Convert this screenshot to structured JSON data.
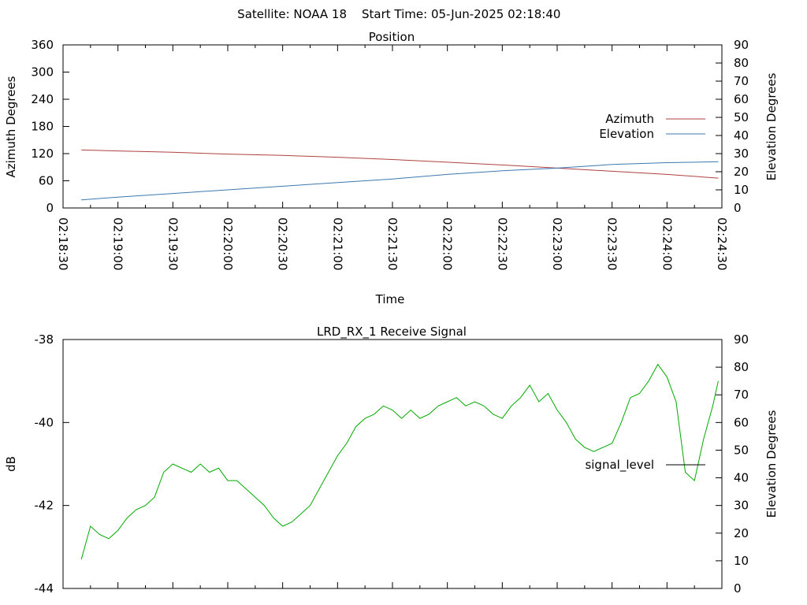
{
  "header": {
    "satellite_label": "Satellite: NOAA 18",
    "start_time_label": "Start Time: 05-Jun-2025 02:18:40"
  },
  "colors": {
    "azimuth": "#b04040",
    "elevation": "#3a78b0",
    "signal": "#00aa00",
    "legend_signal": "#000000",
    "axis": "#000000"
  },
  "chart_data": [
    {
      "type": "line",
      "title": "Position",
      "xlabel": "Time",
      "ylabel": "Azimuth Degrees",
      "y2label": "Elevation Degrees",
      "xlim": [
        "02:18:30",
        "02:24:30"
      ],
      "ylim": [
        0,
        360
      ],
      "y2lim": [
        0,
        90
      ],
      "xticks": [
        "02:18:30",
        "02:19:00",
        "02:19:30",
        "02:20:00",
        "02:20:30",
        "02:21:00",
        "02:21:30",
        "02:22:00",
        "02:22:30",
        "02:23:00",
        "02:23:30",
        "02:24:00",
        "02:24:30"
      ],
      "yticks": [
        "0",
        "60",
        "120",
        "180",
        "240",
        "300",
        "360"
      ],
      "y2ticks": [
        "0",
        "10",
        "20",
        "30",
        "40",
        "50",
        "60",
        "70",
        "80",
        "90"
      ],
      "legend_position": "right",
      "series": [
        {
          "name": "Azimuth",
          "axis": "y",
          "x": [
            "02:18:40",
            "02:19:00",
            "02:19:30",
            "02:20:00",
            "02:20:30",
            "02:21:00",
            "02:21:30",
            "02:22:00",
            "02:22:30",
            "02:23:00",
            "02:23:30",
            "02:24:00",
            "02:24:28"
          ],
          "values": [
            128,
            126,
            123,
            119,
            116,
            112,
            107,
            101,
            95,
            88,
            81,
            74,
            66
          ]
        },
        {
          "name": "Elevation",
          "axis": "y2",
          "x": [
            "02:18:40",
            "02:19:00",
            "02:19:30",
            "02:20:00",
            "02:20:30",
            "02:21:00",
            "02:21:30",
            "02:22:00",
            "02:22:30",
            "02:23:00",
            "02:23:30",
            "02:24:00",
            "02:24:28"
          ],
          "values": [
            4.5,
            6,
            8,
            10,
            12,
            14,
            16,
            18.5,
            20.5,
            22,
            24,
            25,
            25.5
          ]
        }
      ]
    },
    {
      "type": "line",
      "title": "LRD_RX_1 Receive Signal",
      "xlabel": "",
      "ylabel": "dB",
      "y2label": "Elevation Degrees",
      "xlim": [
        "02:18:30",
        "02:24:30"
      ],
      "ylim": [
        -44,
        -38
      ],
      "y2lim": [
        0,
        90
      ],
      "yticks": [
        "-44",
        "-42",
        "-40",
        "-38"
      ],
      "y2ticks": [
        "0",
        "10",
        "20",
        "30",
        "40",
        "50",
        "60",
        "70",
        "80",
        "90"
      ],
      "legend_position": "right",
      "series": [
        {
          "name": "signal_level",
          "axis": "y",
          "x": [
            "02:18:40",
            "02:18:45",
            "02:18:50",
            "02:18:55",
            "02:19:00",
            "02:19:05",
            "02:19:10",
            "02:19:15",
            "02:19:20",
            "02:19:25",
            "02:19:30",
            "02:19:35",
            "02:19:40",
            "02:19:45",
            "02:19:50",
            "02:19:55",
            "02:20:00",
            "02:20:05",
            "02:20:10",
            "02:20:15",
            "02:20:20",
            "02:20:25",
            "02:20:30",
            "02:20:35",
            "02:20:40",
            "02:20:45",
            "02:20:50",
            "02:20:55",
            "02:21:00",
            "02:21:05",
            "02:21:10",
            "02:21:15",
            "02:21:20",
            "02:21:25",
            "02:21:30",
            "02:21:35",
            "02:21:40",
            "02:21:45",
            "02:21:50",
            "02:21:55",
            "02:22:00",
            "02:22:05",
            "02:22:10",
            "02:22:15",
            "02:22:20",
            "02:22:25",
            "02:22:30",
            "02:22:35",
            "02:22:40",
            "02:22:45",
            "02:22:50",
            "02:22:55",
            "02:23:00",
            "02:23:05",
            "02:23:10",
            "02:23:15",
            "02:23:20",
            "02:23:25",
            "02:23:30",
            "02:23:35",
            "02:23:40",
            "02:23:45",
            "02:23:50",
            "02:23:55",
            "02:24:00",
            "02:24:05",
            "02:24:10",
            "02:24:15",
            "02:24:20",
            "02:24:25",
            "02:24:28"
          ],
          "values": [
            -43.3,
            -42.5,
            -42.7,
            -42.8,
            -42.6,
            -42.3,
            -42.1,
            -42.0,
            -41.8,
            -41.2,
            -41.0,
            -41.1,
            -41.2,
            -41.0,
            -41.2,
            -41.1,
            -41.4,
            -41.4,
            -41.6,
            -41.8,
            -42.0,
            -42.3,
            -42.5,
            -42.4,
            -42.2,
            -42.0,
            -41.6,
            -41.2,
            -40.8,
            -40.5,
            -40.1,
            -39.9,
            -39.8,
            -39.6,
            -39.7,
            -39.9,
            -39.7,
            -39.9,
            -39.8,
            -39.6,
            -39.5,
            -39.4,
            -39.6,
            -39.5,
            -39.6,
            -39.8,
            -39.9,
            -39.6,
            -39.4,
            -39.1,
            -39.5,
            -39.3,
            -39.7,
            -40.0,
            -40.4,
            -40.6,
            -40.7,
            -40.6,
            -40.5,
            -40.0,
            -39.4,
            -39.3,
            -39.0,
            -38.6,
            -38.9,
            -39.5,
            -41.2,
            -41.4,
            -40.4,
            -39.6,
            -39.0
          ]
        }
      ]
    }
  ]
}
